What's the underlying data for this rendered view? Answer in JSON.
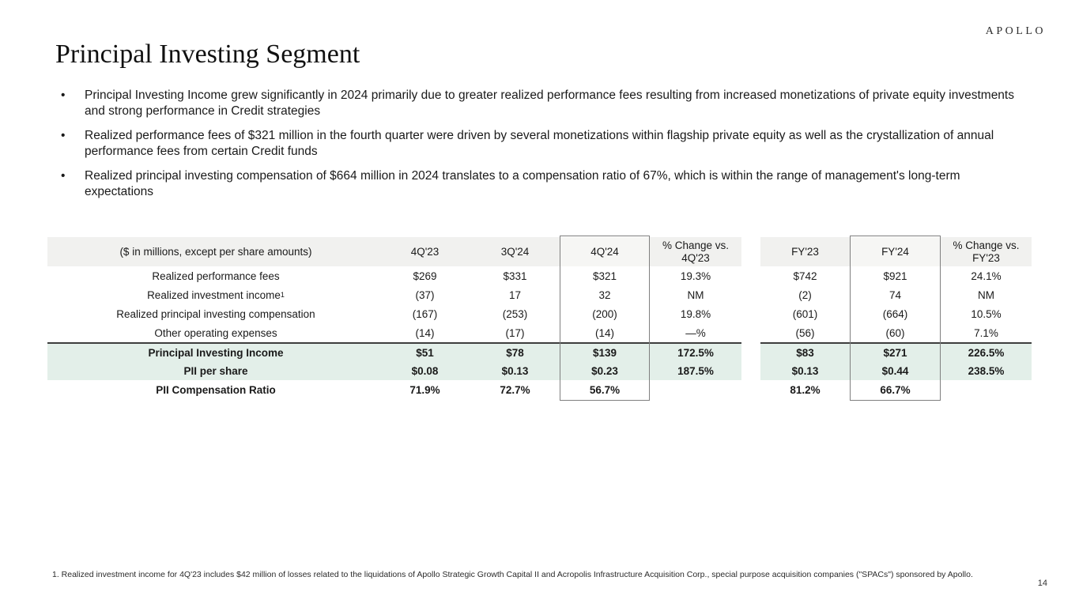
{
  "logo": "APOLLO",
  "page": {
    "title": "Principal Investing Segment",
    "page_number": "14"
  },
  "bullet_char": "•",
  "bullets": [
    "Principal Investing Income grew significantly in 2024 primarily due to greater realized performance fees resulting from increased monetizations of private equity investments and strong performance in Credit strategies",
    "Realized performance fees of $321 million in the fourth quarter were driven by several monetizations within flagship private equity as well as the crystallization of annual performance fees from certain Credit funds",
    "Realized principal investing compensation of $664 million in 2024 translates to a compensation ratio of 67%, which is within the range of management's long-term expectations"
  ],
  "table": {
    "header": {
      "corner": "($ in millions, except per share amounts)",
      "q1": "4Q'23",
      "q2": "3Q'24",
      "q3": "4Q'24",
      "q_change": "% Change vs. 4Q'23",
      "f1": "FY'23",
      "f2": "FY'24",
      "f_change": "% Change vs. FY'23"
    },
    "rows": [
      {
        "label": "Realized performance fees",
        "values": [
          "$269",
          "$331",
          "$321",
          "19.3%",
          "$742",
          "$921",
          "24.1%"
        ]
      },
      {
        "label": "Realized investment income",
        "sup": "1",
        "values": [
          "(37)",
          "17",
          "32",
          "NM",
          "(2)",
          "74",
          "NM"
        ]
      },
      {
        "label": "Realized principal investing compensation",
        "values": [
          "(167)",
          "(253)",
          "(200)",
          "19.8%",
          "(601)",
          "(664)",
          "10.5%"
        ]
      },
      {
        "label": "Other operating expenses",
        "values": [
          "(14)",
          "(17)",
          "(14)",
          "—%",
          "(56)",
          "(60)",
          "7.1%"
        ]
      },
      {
        "label": "Principal Investing Income",
        "values": [
          "$51",
          "$78",
          "$139",
          "172.5%",
          "$83",
          "$271",
          "226.5%"
        ]
      },
      {
        "label": "PII per share",
        "values": [
          "$0.08",
          "$0.13",
          "$0.23",
          "187.5%",
          "$0.13",
          "$0.44",
          "238.5%"
        ]
      },
      {
        "label": "PII Compensation Ratio",
        "values": [
          "71.9%",
          "72.7%",
          "56.7%",
          "",
          "81.2%",
          "66.7%",
          ""
        ]
      }
    ]
  },
  "footnote": "1. Realized investment income for 4Q'23 includes $42 million of losses related to the liquidations of Apollo Strategic Growth Capital II and Acropolis Infrastructure Acquisition Corp., special purpose acquisition companies (\"SPACs\") sponsored by Apollo.",
  "colors": {
    "header_bg": "#f1f1ef",
    "highlight_bg": "#e3efe9",
    "rule": "#3d3d3d",
    "box_border": "#7f7f7f"
  }
}
